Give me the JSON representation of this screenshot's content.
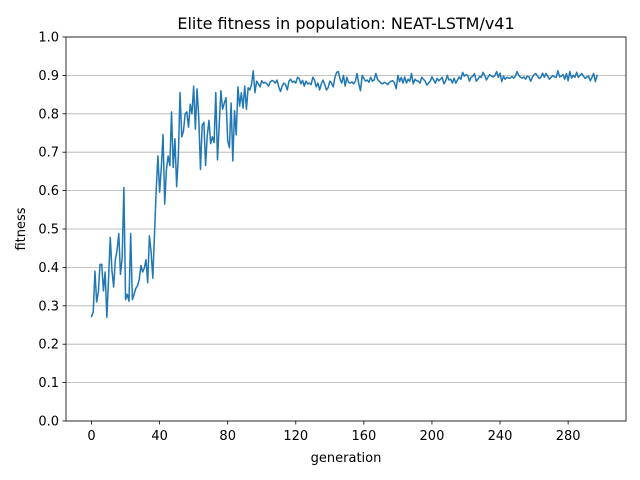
{
  "chart_data": {
    "type": "line",
    "title": "Elite fitness in population: NEAT-LSTM/v41",
    "xlabel": "generation",
    "ylabel": "fitness",
    "xlim": [
      -15,
      314
    ],
    "ylim": [
      0.0,
      1.0
    ],
    "xticks": [
      0,
      40,
      80,
      120,
      160,
      200,
      240,
      280
    ],
    "yticks": [
      0.0,
      0.1,
      0.2,
      0.3,
      0.4,
      0.5,
      0.6,
      0.7,
      0.8,
      0.9,
      1.0
    ],
    "ytick_labels": [
      "0.0",
      "0.1",
      "0.2",
      "0.3",
      "0.4",
      "0.5",
      "0.6",
      "0.7",
      "0.8",
      "0.9",
      "1.0"
    ],
    "grid": "horizontal",
    "line_color": "#1f77b4",
    "series": [
      {
        "values": [
          0.272,
          0.284,
          0.39,
          0.31,
          0.335,
          0.408,
          0.408,
          0.339,
          0.388,
          0.27,
          0.37,
          0.478,
          0.392,
          0.349,
          0.42,
          0.445,
          0.488,
          0.382,
          0.425,
          0.608,
          0.316,
          0.33,
          0.312,
          0.488,
          0.316,
          0.33,
          0.345,
          0.352,
          0.368,
          0.405,
          0.388,
          0.398,
          0.42,
          0.36,
          0.482,
          0.44,
          0.372,
          0.488,
          0.602,
          0.69,
          0.596,
          0.66,
          0.746,
          0.565,
          0.655,
          0.69,
          0.665,
          0.805,
          0.66,
          0.735,
          0.61,
          0.69,
          0.855,
          0.74,
          0.755,
          0.8,
          0.805,
          0.765,
          0.825,
          0.8,
          0.872,
          0.76,
          0.865,
          0.79,
          0.655,
          0.77,
          0.778,
          0.665,
          0.744,
          0.783,
          0.722,
          0.74,
          0.725,
          0.855,
          0.68,
          0.77,
          0.86,
          0.812,
          0.828,
          0.842,
          0.73,
          0.712,
          0.828,
          0.677,
          0.808,
          0.745,
          0.87,
          0.82,
          0.855,
          0.815,
          0.872,
          0.812,
          0.868,
          0.862,
          0.876,
          0.912,
          0.855,
          0.885,
          0.878,
          0.87,
          0.886,
          0.88,
          0.882,
          0.878,
          0.872,
          0.883,
          0.887,
          0.885,
          0.88,
          0.888,
          0.87,
          0.858,
          0.872,
          0.88,
          0.876,
          0.862,
          0.885,
          0.89,
          0.882,
          0.885,
          0.88,
          0.895,
          0.892,
          0.878,
          0.887,
          0.872,
          0.885,
          0.878,
          0.88,
          0.876,
          0.895,
          0.888,
          0.87,
          0.88,
          0.862,
          0.878,
          0.888,
          0.876,
          0.862,
          0.868,
          0.885,
          0.88,
          0.87,
          0.895,
          0.908,
          0.91,
          0.89,
          0.88,
          0.9,
          0.872,
          0.895,
          0.882,
          0.88,
          0.883,
          0.878,
          0.885,
          0.905,
          0.878,
          0.86,
          0.9,
          0.892,
          0.885,
          0.888,
          0.882,
          0.895,
          0.885,
          0.888,
          0.905,
          0.89,
          0.885,
          0.88,
          0.878,
          0.882,
          0.88,
          0.876,
          0.882,
          0.885,
          0.886,
          0.88,
          0.865,
          0.9,
          0.884,
          0.895,
          0.88,
          0.896,
          0.88,
          0.89,
          0.885,
          0.905,
          0.878,
          0.89,
          0.886,
          0.885,
          0.88,
          0.895,
          0.89,
          0.885,
          0.875,
          0.88,
          0.885,
          0.896,
          0.888,
          0.88,
          0.892,
          0.886,
          0.89,
          0.895,
          0.878,
          0.885,
          0.9,
          0.888,
          0.89,
          0.88,
          0.893,
          0.88,
          0.888,
          0.896,
          0.89,
          0.908,
          0.898,
          0.902,
          0.9,
          0.885,
          0.895,
          0.898,
          0.905,
          0.885,
          0.89,
          0.897,
          0.895,
          0.908,
          0.9,
          0.888,
          0.896,
          0.902,
          0.898,
          0.896,
          0.9,
          0.91,
          0.895,
          0.906,
          0.884,
          0.898,
          0.89,
          0.895,
          0.893,
          0.893,
          0.897,
          0.893,
          0.898,
          0.91,
          0.9,
          0.895,
          0.893,
          0.896,
          0.89,
          0.898,
          0.896,
          0.885,
          0.895,
          0.902,
          0.905,
          0.898,
          0.892,
          0.895,
          0.906,
          0.895,
          0.905,
          0.898,
          0.89,
          0.895,
          0.9,
          0.896,
          0.895,
          0.912,
          0.896,
          0.898,
          0.902,
          0.89,
          0.905,
          0.886,
          0.91,
          0.893,
          0.9,
          0.895,
          0.908,
          0.895,
          0.9,
          0.905,
          0.898,
          0.892,
          0.896,
          0.898,
          0.886,
          0.895,
          0.905,
          0.884,
          0.9
        ]
      }
    ]
  }
}
